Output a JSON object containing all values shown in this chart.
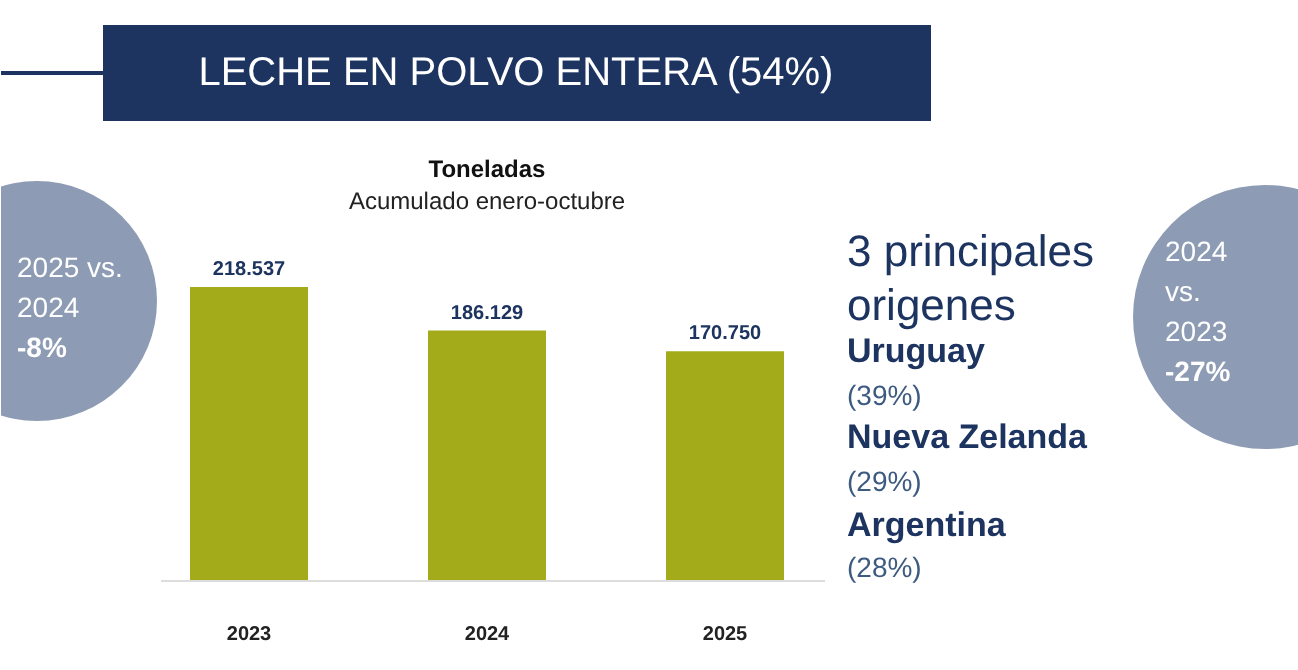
{
  "chart_data": {
    "type": "bar",
    "title": "LECHE EN POLVO ENTERA (54%)",
    "subtitle": "Toneladas",
    "categories": [
      "2023",
      "2024",
      "2025"
    ],
    "values": [
      218537,
      186129,
      170750
    ],
    "value_labels": [
      "218.537",
      "186.129",
      "170.750"
    ],
    "color": "#a3ab1b",
    "annotations": [
      "Acumulado enero-octubre",
      "2025 vs.",
      "2024",
      "-8%",
      "2024",
      "vs.",
      "2023",
      "-27%",
      "3 principales",
      "origenes",
      "Uruguay",
      "(39%)",
      "Nueva Zelanda",
      "(29%)",
      "Argentina",
      "(28%)"
    ]
  }
}
